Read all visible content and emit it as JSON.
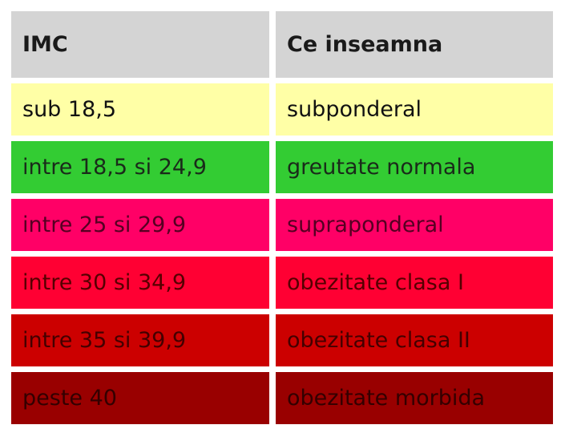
{
  "table": {
    "header": [
      "IMC",
      "Ce inseamna"
    ],
    "rows": [
      [
        "sub 18,5",
        "subponderal"
      ],
      [
        "intre 18,5 si 24,9",
        "greutate normala"
      ],
      [
        "intre 25 si 29,9",
        "supraponderal"
      ],
      [
        "intre 30 si 34,9",
        "obezitate clasa I"
      ],
      [
        "intre 35 si 39,9",
        "obezitate clasa II"
      ],
      [
        "peste 40",
        "obezitate morbida"
      ]
    ]
  }
}
